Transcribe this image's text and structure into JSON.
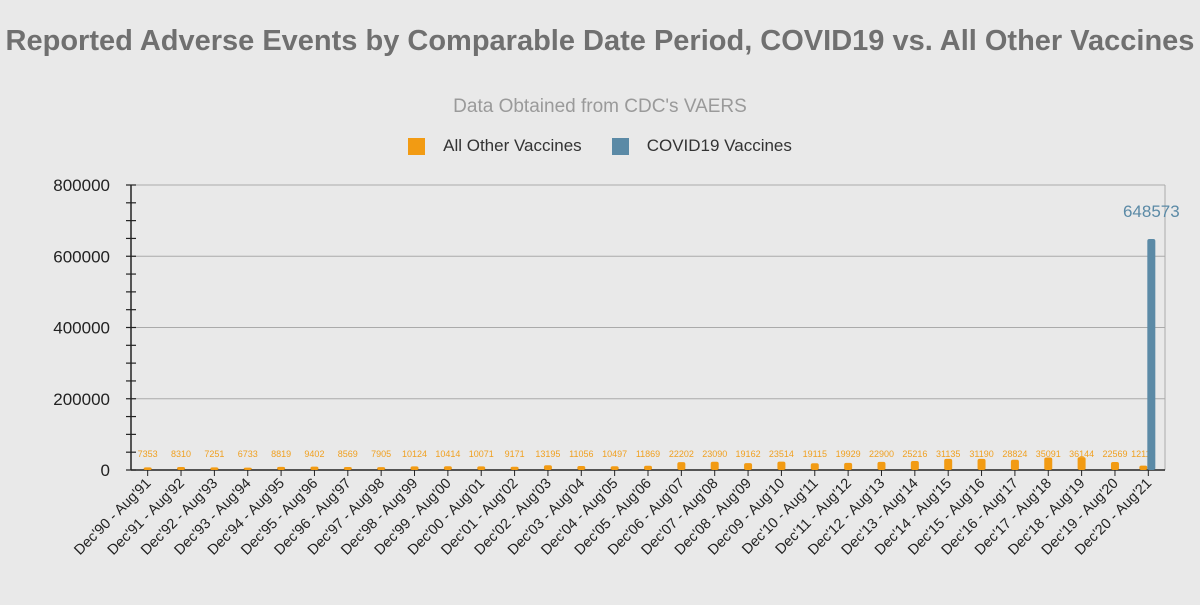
{
  "chart_data": {
    "type": "bar",
    "title": "Reported Adverse Events by Comparable Date Period, COVID19 vs. All Other Vaccines",
    "subtitle": "Data Obtained from CDC's VAERS",
    "categories": [
      "Dec'90 - Aug'91",
      "Dec'91 - Aug'92",
      "Dec'92 - Aug'93",
      "Dec'93 - Aug'94",
      "Dec'94 - Aug'95",
      "Dec'95 - Aug'96",
      "Dec'96 - Aug'97",
      "Dec'97 - Aug'98",
      "Dec'98 - Aug'99",
      "Dec'99 - Aug'00",
      "Dec'00 - Aug'01",
      "Dec'01 - Aug'02",
      "Dec'02 - Aug'03",
      "Dec'03 - Aug'04",
      "Dec'04 - Aug'05",
      "Dec'05 - Aug'06",
      "Dec'06 - Aug'07",
      "Dec'07 - Aug'08",
      "Dec'08 - Aug'09",
      "Dec'09 - Aug'10",
      "Dec'10 - Aug'11",
      "Dec'11 - Aug'12",
      "Dec'12 - Aug'13",
      "Dec'13 - Aug'14",
      "Dec'14 - Aug'15",
      "Dec'15 - Aug'16",
      "Dec'16 - Aug'17",
      "Dec'17 - Aug'18",
      "Dec'18 - Aug'19",
      "Dec'19 - Aug'20",
      "Dec'20 - Aug'21"
    ],
    "series": [
      {
        "name": "All Other Vaccines",
        "color": "#f29b13",
        "values": [
          7353,
          8310,
          7251,
          6733,
          8819,
          9402,
          8569,
          7905,
          10124,
          10414,
          10071,
          9171,
          13195,
          11056,
          10497,
          11869,
          22202,
          23090,
          19162,
          23514,
          19115,
          19929,
          22900,
          25216,
          31135,
          31190,
          28824,
          35091,
          36144,
          22569,
          12118
        ]
      },
      {
        "name": "COVID19 Vaccines",
        "color": "#5b8aa6",
        "values": [
          null,
          null,
          null,
          null,
          null,
          null,
          null,
          null,
          null,
          null,
          null,
          null,
          null,
          null,
          null,
          null,
          null,
          null,
          null,
          null,
          null,
          null,
          null,
          null,
          null,
          null,
          null,
          null,
          null,
          null,
          648573
        ]
      }
    ],
    "ylim": [
      0,
      800000
    ],
    "yticks": [
      0,
      200000,
      400000,
      600000,
      800000
    ],
    "xlabel": "",
    "ylabel": "",
    "grid": true,
    "legend": "top"
  }
}
